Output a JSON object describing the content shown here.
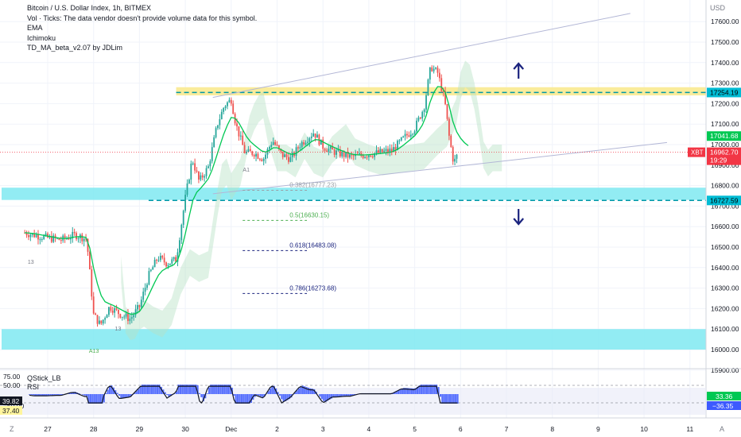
{
  "legend": {
    "title": "Bitcoin / U.S. Dollar Index, 1h, BITMEX",
    "vol": "Vol · Ticks: The data vendor doesn't provide volume data for this symbol.",
    "ema": "EMA",
    "ichimoku": "Ichimoku",
    "td": "TD_MA_beta_v2.07 by JDLim"
  },
  "sub_legend": {
    "qstick": "QStick_LB",
    "rsi": "RSI"
  },
  "currency": "USD",
  "colors": {
    "up": "#26a69a",
    "down": "#ef5350",
    "ema": "#00c853",
    "cyan_zone": "#7fe9f1",
    "yellow_zone": "#f9e98a",
    "arrow": "#1a237e",
    "fib": "#1a237e",
    "fib_green": "#4caf50",
    "trend": "#b3b7d6",
    "xbt": "#f23645"
  },
  "chart_data": {
    "type": "candlestick",
    "symbol": "Bitcoin / U.S. Dollar Index",
    "timeframe": "1h",
    "exchange": "BITMEX",
    "ylim": [
      15900,
      17700
    ],
    "y_ticks": [
      "17600.00",
      "17500.00",
      "17400.00",
      "17300.00",
      "17200.00",
      "17100.00",
      "17000.00",
      "16900.00",
      "16800.00",
      "16700.00",
      "16600.00",
      "16500.00",
      "16400.00",
      "16300.00",
      "16200.00",
      "16100.00",
      "16000.00",
      "15900.00"
    ],
    "x_ticks": [
      "27",
      "28",
      "29",
      "30",
      "Dec",
      "2",
      "3",
      "4",
      "5",
      "6",
      "7",
      "8",
      "9",
      "10",
      "11"
    ],
    "x_days": [
      0,
      1,
      2,
      3,
      4,
      5,
      6,
      7,
      8,
      9,
      10,
      11,
      12,
      13,
      14
    ],
    "x_range_days": [
      -0.5,
      14.1
    ],
    "price_path": [
      [
        -0.5,
        16570
      ],
      [
        -0.3,
        16560
      ],
      [
        0,
        16545
      ],
      [
        0.3,
        16535
      ],
      [
        0.6,
        16560
      ],
      [
        0.85,
        16540
      ],
      [
        1.0,
        16170
      ],
      [
        1.15,
        16120
      ],
      [
        1.35,
        16210
      ],
      [
        1.6,
        16170
      ],
      [
        1.8,
        16150
      ],
      [
        2.0,
        16210
      ],
      [
        2.2,
        16360
      ],
      [
        2.4,
        16450
      ],
      [
        2.6,
        16420
      ],
      [
        2.8,
        16440
      ],
      [
        3.0,
        16740
      ],
      [
        3.15,
        16930
      ],
      [
        3.3,
        16820
      ],
      [
        3.5,
        16890
      ],
      [
        3.7,
        17100
      ],
      [
        3.85,
        17190
      ],
      [
        4.0,
        17220
      ],
      [
        4.1,
        17100
      ],
      [
        4.3,
        16960
      ],
      [
        4.5,
        16960
      ],
      [
        4.7,
        16930
      ],
      [
        4.9,
        17020
      ],
      [
        5.1,
        16950
      ],
      [
        5.3,
        16930
      ],
      [
        5.5,
        17000
      ],
      [
        5.8,
        17060
      ],
      [
        6.0,
        16990
      ],
      [
        6.3,
        16960
      ],
      [
        6.6,
        16940
      ],
      [
        6.9,
        16950
      ],
      [
        7.2,
        16960
      ],
      [
        7.5,
        16970
      ],
      [
        7.8,
        17040
      ],
      [
        8.0,
        17080
      ],
      [
        8.2,
        17180
      ],
      [
        8.35,
        17380
      ],
      [
        8.5,
        17350
      ],
      [
        8.65,
        17220
      ],
      [
        8.75,
        17040
      ],
      [
        8.85,
        16910
      ],
      [
        8.95,
        16960
      ]
    ],
    "series": [
      {
        "name": "EMA"
      },
      {
        "name": "Ichimoku"
      },
      {
        "name": "TD_MA_beta_v2.07"
      }
    ],
    "horizontal_lines": [
      {
        "price": 17254.19,
        "label": "17254.19",
        "zone": [
          17240,
          17280
        ]
      },
      {
        "price": 16727.59,
        "label": "16727.59",
        "zone": [
          16730,
          16790
        ]
      }
    ],
    "support_zone": [
      16000,
      16100
    ],
    "fib_levels": [
      {
        "label": "0.382(16777.23)",
        "price": 16777.23,
        "color": "grey"
      },
      {
        "label": "0.5(16630.15)",
        "price": 16630.15,
        "color": "green"
      },
      {
        "label": "0.618(16483.08)",
        "price": 16483.08,
        "color": "blue"
      },
      {
        "label": "0.786(16273.68)",
        "price": 16273.68,
        "color": "blue"
      }
    ],
    "price_labels": [
      {
        "text": "17041.68",
        "price": 17041.68,
        "type": "green"
      },
      {
        "text": "16962.70",
        "price": 16962.7,
        "type": "red",
        "sub": "19:29",
        "tag": "XBT"
      }
    ],
    "annotations": [
      "A13",
      "A1",
      "13",
      "13"
    ],
    "sub_panel": {
      "ylim": [
        -75,
        75
      ],
      "y_ticks": [
        "75.00",
        "50.00",
        "−50.00"
      ],
      "left_labels": [
        "39.82",
        "37.40"
      ],
      "right_labels": [
        "33.36",
        "−36.35"
      ]
    }
  },
  "bottom": {
    "left": "Z",
    "right": "A"
  }
}
